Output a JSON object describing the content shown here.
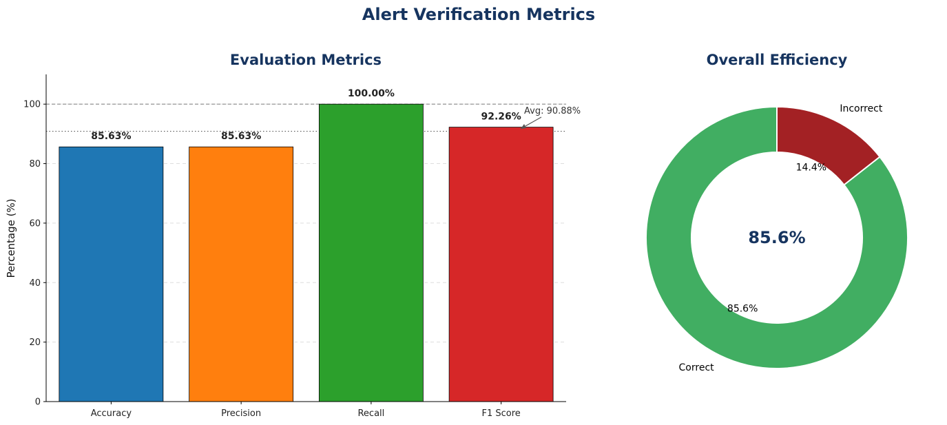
{
  "figure": {
    "title": "Alert Verification Metrics"
  },
  "theme": {
    "title_color": "#16345f"
  },
  "chart_data": [
    {
      "type": "bar",
      "title": "Evaluation Metrics",
      "xlabel": "",
      "ylabel": "Percentage (%)",
      "categories": [
        "Accuracy",
        "Precision",
        "Recall",
        "F1 Score"
      ],
      "values": [
        85.63,
        85.63,
        100.0,
        92.26
      ],
      "value_labels": [
        "85.63%",
        "85.63%",
        "100.00%",
        "92.26%"
      ],
      "colors": [
        "#1f77b4",
        "#ff7f0e",
        "#2ca02c",
        "#d62728"
      ],
      "ylim": [
        0,
        110
      ],
      "yticks": [
        0,
        20,
        40,
        60,
        80,
        100
      ],
      "grid": "y, dashed",
      "reference_lines": [
        {
          "value": 100,
          "style": "dashed"
        },
        {
          "value": 90.88,
          "style": "dotted"
        }
      ],
      "annotation": {
        "text": "Avg: 90.88%",
        "value": 90.88
      }
    },
    {
      "type": "pie",
      "subtype": "donut",
      "title": "Overall Efficiency",
      "slices": [
        {
          "label": "Correct",
          "value": 85.6,
          "pct_label": "85.6%",
          "color": "#41ae62"
        },
        {
          "label": "Incorrect",
          "value": 14.4,
          "pct_label": "14.4%",
          "color": "#a32124"
        }
      ],
      "center_text": "85.6%"
    }
  ]
}
